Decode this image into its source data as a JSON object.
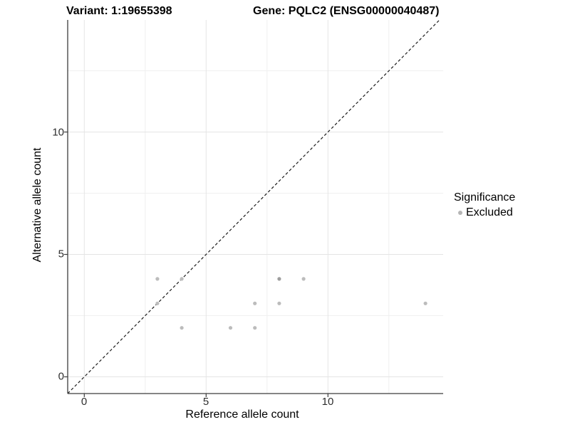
{
  "header": {
    "title_left": "Variant: 1:19655398",
    "title_right": "Gene: PQLC2 (ENSG00000040487)"
  },
  "chart_data": {
    "type": "scatter",
    "title_left": "Variant: 1:19655398",
    "title_right": "Gene: PQLC2 (ENSG00000040487)",
    "xlabel": "Reference allele count",
    "ylabel": "Alternative allele count",
    "xlim": [
      -0.68,
      14.73
    ],
    "ylim": [
      -0.68,
      14.58
    ],
    "grid": "on",
    "x_ticks": [
      {
        "v": 0,
        "label": "0"
      },
      {
        "v": 5,
        "label": "5"
      },
      {
        "v": 10,
        "label": "10"
      }
    ],
    "y_ticks": [
      {
        "v": 0,
        "label": "0"
      },
      {
        "v": 5,
        "label": "5"
      },
      {
        "v": 10,
        "label": "10"
      }
    ],
    "minor_grid_values": [
      2.5,
      7.5,
      12.5
    ],
    "identity_line": {
      "equation": "y = x",
      "style": "dashed",
      "color": "#1c1c1c"
    },
    "series": [
      {
        "name": "Excluded",
        "point_color": "#bcbcbc",
        "points": [
          {
            "x": 3,
            "y": 3
          },
          {
            "x": 3,
            "y": 4
          },
          {
            "x": 4,
            "y": 2
          },
          {
            "x": 4,
            "y": 4
          },
          {
            "x": 6,
            "y": 2
          },
          {
            "x": 7,
            "y": 2
          },
          {
            "x": 7,
            "y": 3
          },
          {
            "x": 8,
            "y": 3
          },
          {
            "x": 8,
            "y": 4,
            "overplotted": true,
            "color": "#9e9e9e"
          },
          {
            "x": 9,
            "y": 4
          },
          {
            "x": 14,
            "y": 3
          }
        ]
      }
    ],
    "legend": {
      "title": "Significance",
      "position": "right",
      "entries": [
        {
          "label": "Excluded",
          "color": "#b5b5b5"
        }
      ]
    }
  },
  "style_colors": {
    "background": "#ffffff",
    "grid_major": "#e4e4e4",
    "grid_minor": "#f0f0f0",
    "axis_line": "#3c3c3c",
    "tick_mark": "#3c3c3c"
  }
}
